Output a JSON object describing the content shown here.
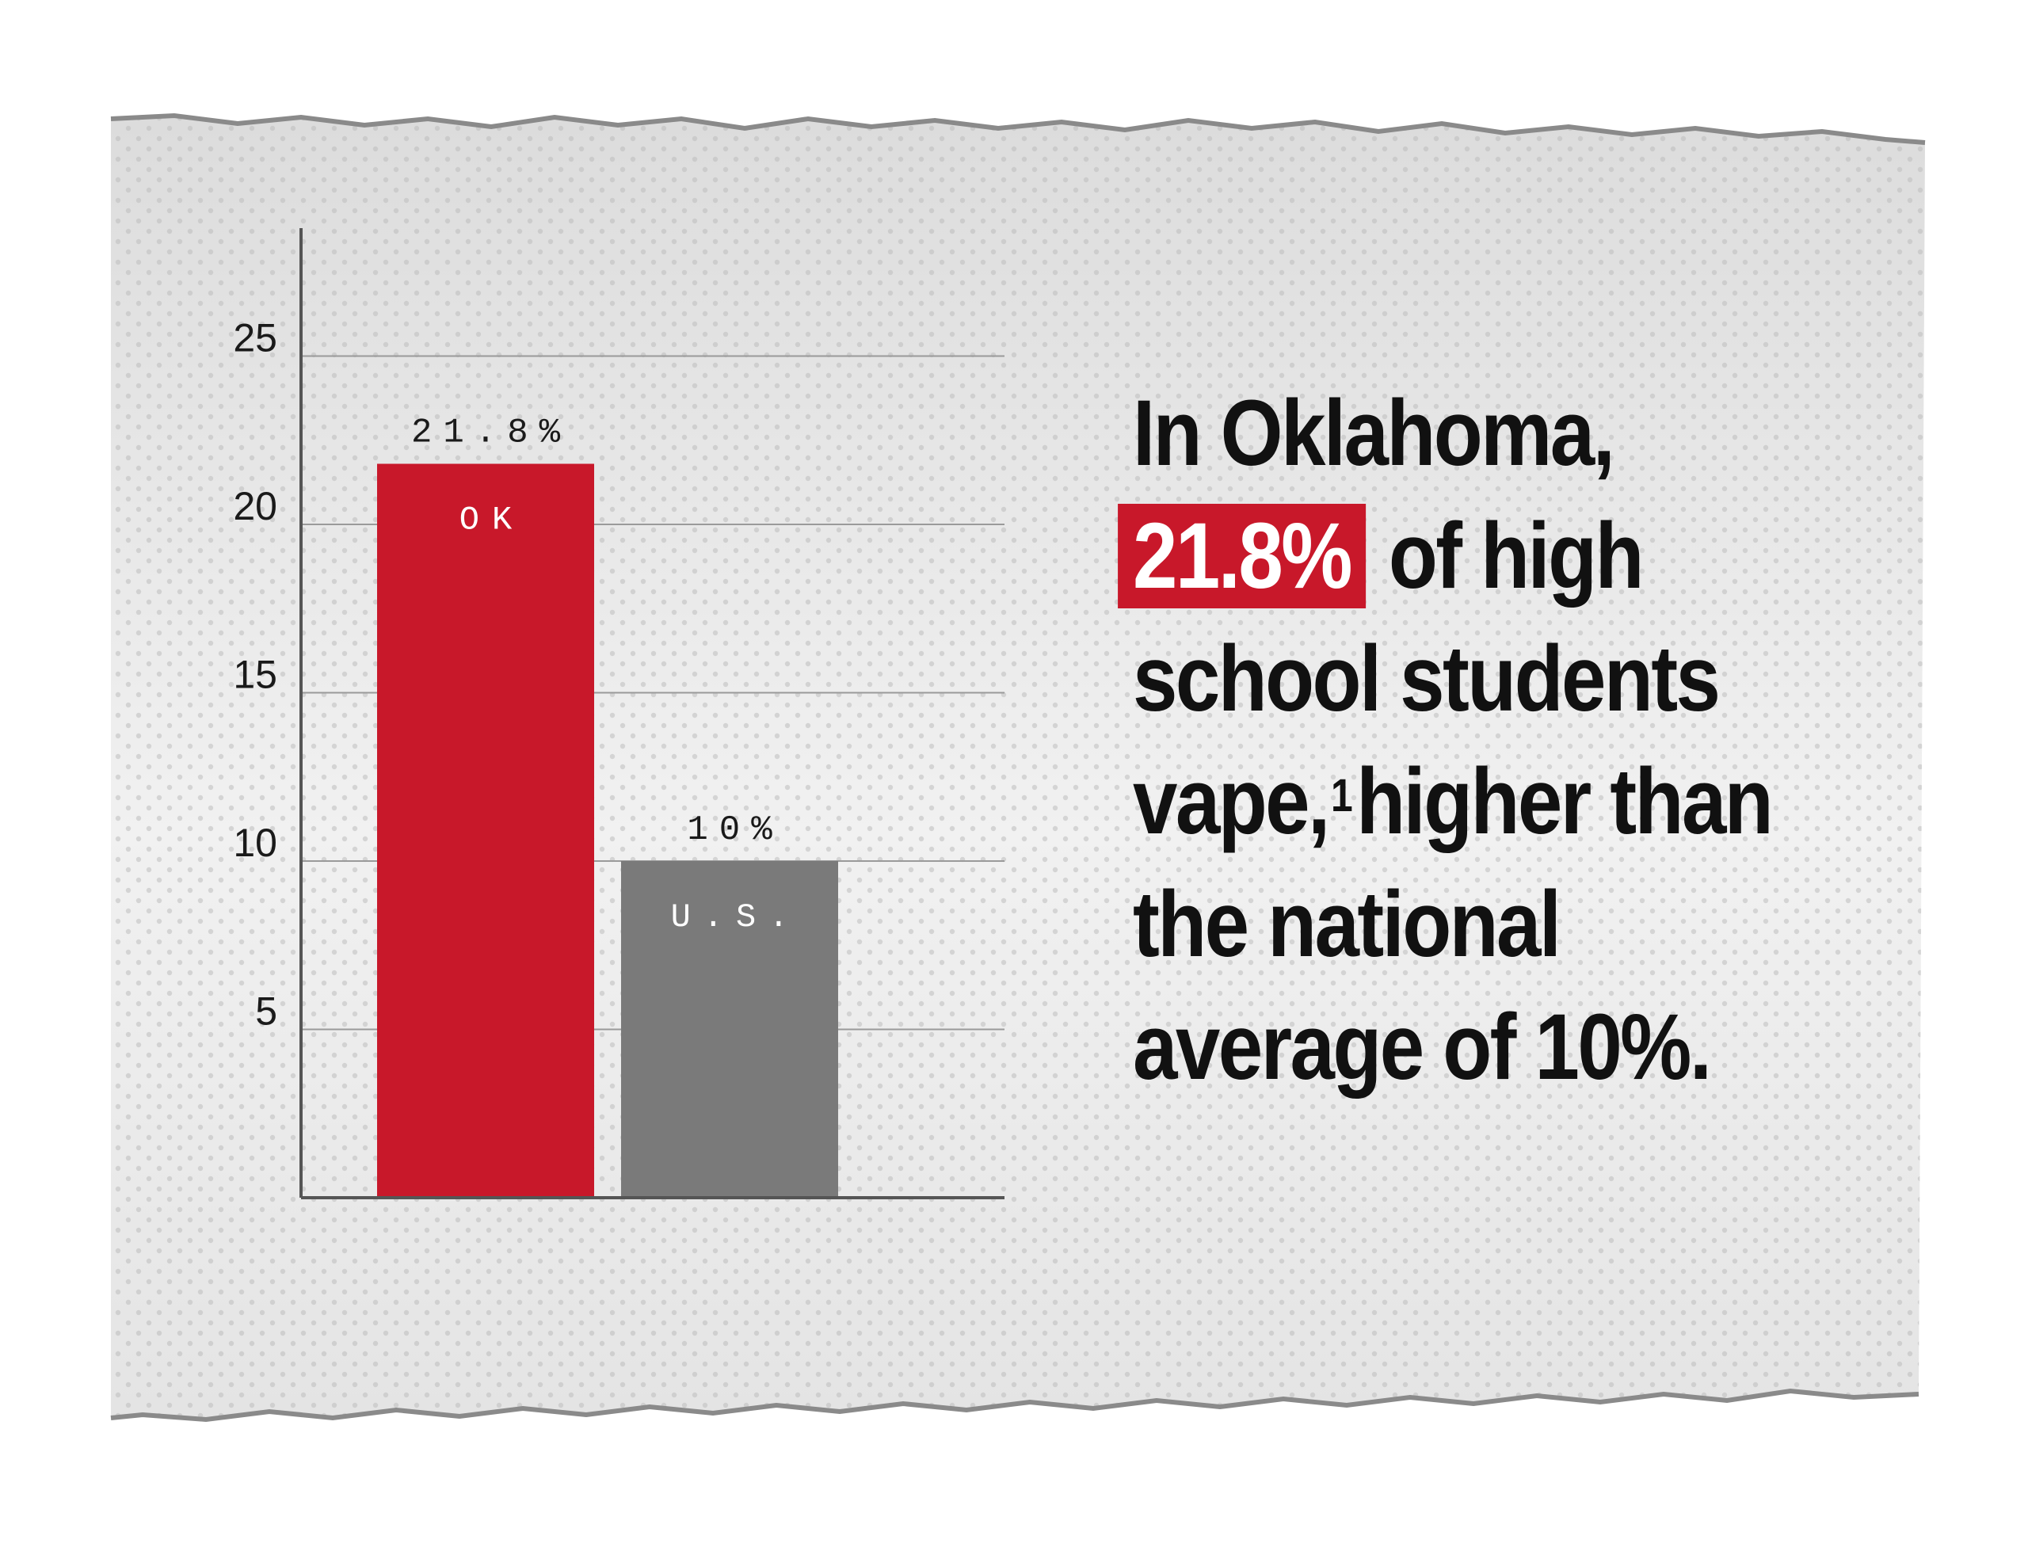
{
  "colors": {
    "paper": "#e9e9e9",
    "ok_bar": "#c8182a",
    "us_bar": "#7a7a7a",
    "highlight": "#c8182a",
    "text": "#111111"
  },
  "headline": {
    "line1": "In Oklahoma,",
    "highlight": "21.8%",
    "after_highlight": "of high school students vape,",
    "footnote_ref": "1",
    "after_footnote": "higher than the national average of 10%."
  },
  "chart_data": {
    "type": "bar",
    "categories": [
      "OK",
      "U.S."
    ],
    "values": [
      21.8,
      10
    ],
    "value_labels": [
      "21.8%",
      "10%"
    ],
    "yticks": [
      5,
      10,
      15,
      20,
      25
    ],
    "ylim": [
      0,
      28.8
    ],
    "grid": true,
    "title": "",
    "xlabel": "",
    "ylabel": ""
  }
}
